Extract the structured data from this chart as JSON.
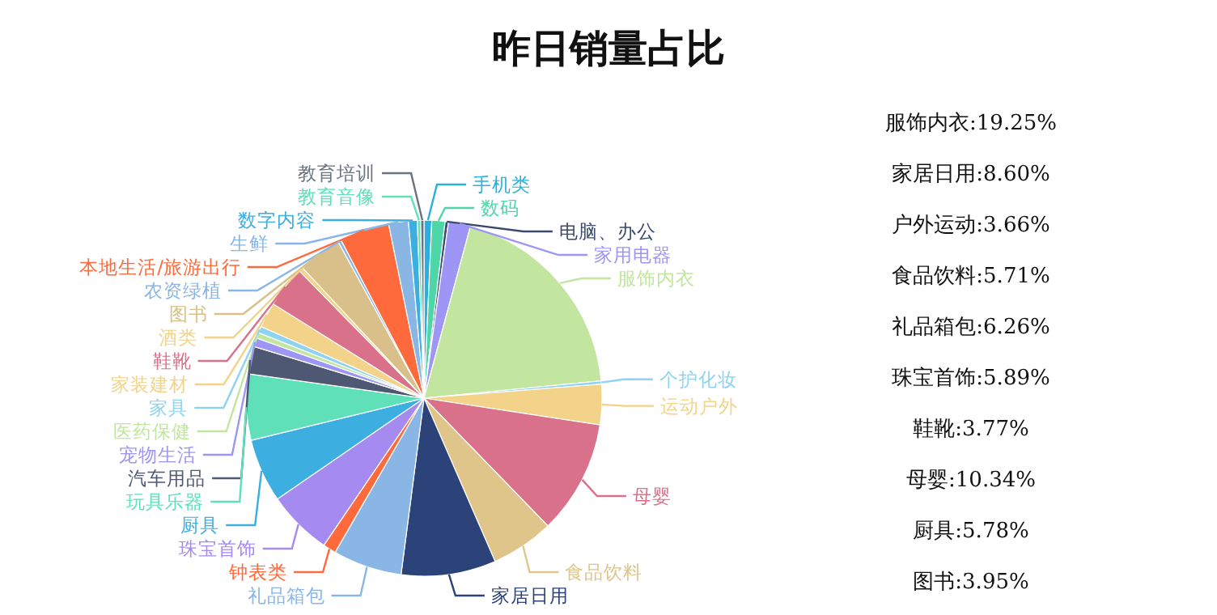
{
  "chart_data": {
    "type": "pie",
    "title": "昨日销量占比",
    "categories": [
      "手机类",
      "数码",
      "电脑、办公",
      "家用电器",
      "服饰内衣",
      "个护化妆",
      "运动户外",
      "母婴",
      "食品饮料",
      "家居日用",
      "礼品箱包",
      "钟表类",
      "珠宝首饰",
      "厨具",
      "玩具乐器",
      "汽车用品",
      "宠物生活",
      "医药保健",
      "家具",
      "家装建材",
      "鞋靴",
      "酒类",
      "图书",
      "农资绿植",
      "本地生活/旅游出行",
      "生鲜",
      "数字内容",
      "教育音像",
      "教育培训"
    ],
    "values": [
      0.7,
      1.2,
      0.3,
      2.0,
      19.25,
      0.3,
      3.66,
      10.34,
      5.71,
      8.6,
      6.26,
      1.2,
      5.89,
      5.78,
      6.0,
      2.5,
      0.8,
      0.5,
      0.6,
      2.3,
      3.77,
      0.4,
      3.95,
      0.3,
      4.5,
      1.79,
      0.8,
      0.3,
      0.3
    ],
    "colors": [
      "#2ab0e0",
      "#4fd6a8",
      "#3b4a6b",
      "#9d96f5",
      "#c2e6a0",
      "#8fd3f0",
      "#f2d389",
      "#d9718a",
      "#e0c58a",
      "#2c437a",
      "#8ab6e6",
      "#ff6a3d",
      "#a58af0",
      "#3daee0",
      "#60e0b8",
      "#4f5872",
      "#9d96f5",
      "#c2e6a0",
      "#8fd3f0",
      "#f2d389",
      "#d9718a",
      "#f2d389",
      "#d9c08a",
      "#8ab6e6",
      "#ff6a3d",
      "#8ab6e6",
      "#3daee0",
      "#60e0b8",
      "#6b7280"
    ],
    "annotations": [
      "服饰内衣:19.25%",
      "家居日用:8.60%",
      "户外运动:3.66%",
      "食品饮料:5.71%",
      "礼品箱包:6.26%",
      "珠宝首饰:5.89%",
      "鞋靴:3.77%",
      "母婴:10.34%",
      "厨具:5.78%",
      "图书:3.95%"
    ]
  }
}
